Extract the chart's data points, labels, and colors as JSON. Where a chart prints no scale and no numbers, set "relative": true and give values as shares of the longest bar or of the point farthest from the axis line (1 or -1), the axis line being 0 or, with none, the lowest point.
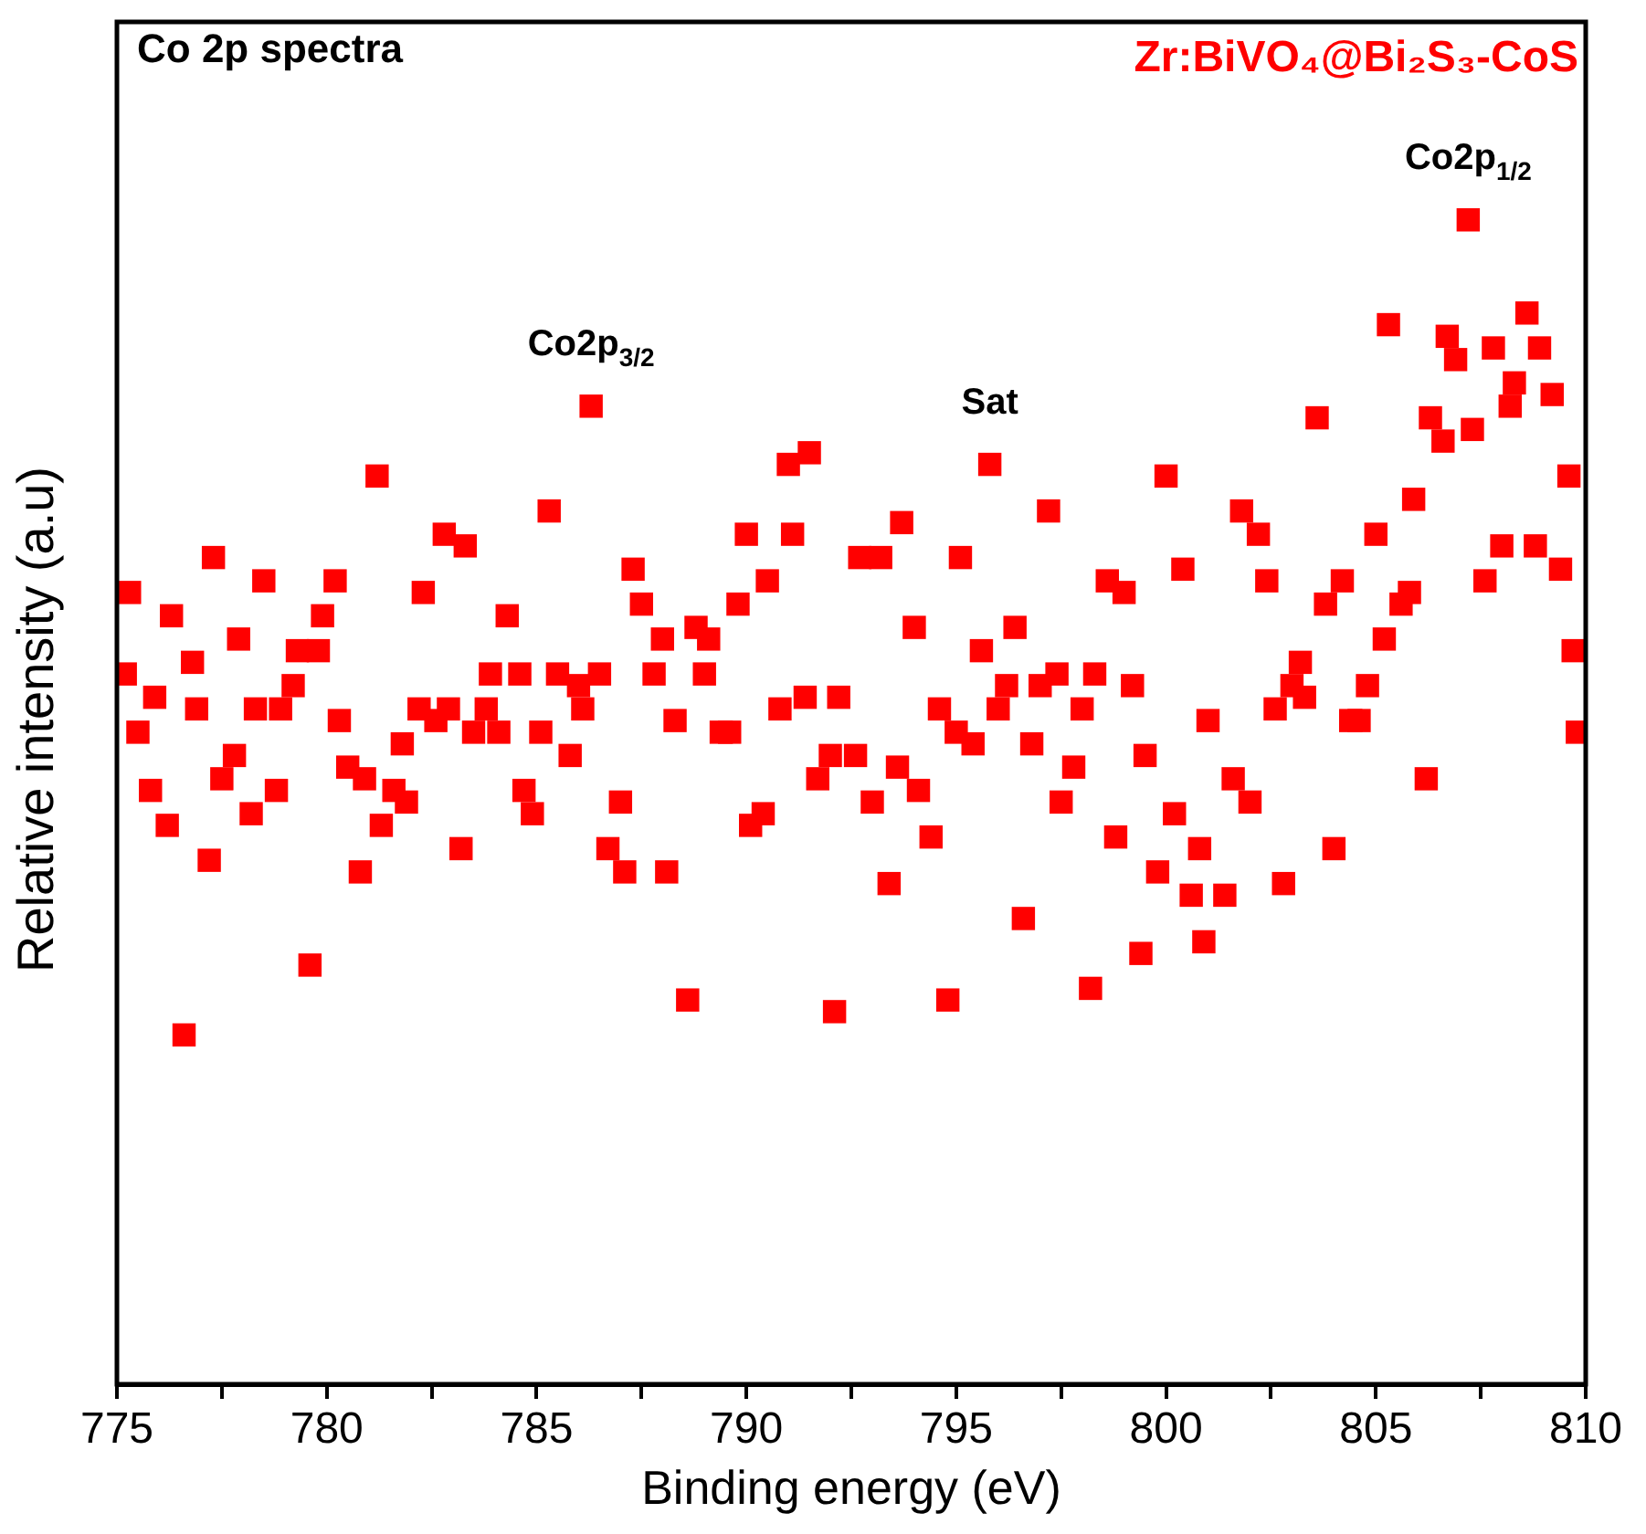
{
  "chart_data": {
    "type": "scatter",
    "title": "Co 2p spectra",
    "xlabel": "Binding energy (eV)",
    "ylabel": "Relative intensity (a.u)",
    "relative": true,
    "marker": "square",
    "legend": "top right",
    "xlim": [
      775,
      810
    ],
    "xticks": [
      775,
      {
        "value": 777.5,
        "label": null
      },
      780,
      {
        "value": 782.5,
        "label": null
      },
      785,
      {
        "value": 787.5,
        "label": null
      },
      790,
      {
        "value": 792.5,
        "label": null
      },
      795,
      {
        "value": 797.5,
        "label": null
      },
      800,
      {
        "value": 802.5,
        "label": null
      },
      805,
      {
        "value": 807.5,
        "label": null
      },
      810
    ],
    "annotations": [
      {
        "text": "Co2p$_{3/2}$",
        "x": 786.3,
        "y": 0.84
      },
      {
        "text": "Sat",
        "x": 795.8,
        "y": 0.79
      },
      {
        "text": "Co2p$_{1/2}$",
        "x": 807.2,
        "y": 1
      }
    ],
    "series": [
      {
        "name": "Zr:BiVO₄@Bi₂S₃-CoS",
        "color": "#ff0000",
        "x": [
          775.2,
          775.3,
          775.5,
          775.8,
          775.9,
          776.2,
          776.3,
          776.6,
          776.8,
          776.9,
          777.2,
          777.3,
          777.5,
          777.8,
          777.9,
          778.2,
          778.3,
          778.5,
          778.8,
          778.9,
          779.2,
          779.3,
          779.6,
          779.8,
          779.9,
          780.2,
          780.3,
          780.5,
          780.8,
          780.9,
          781.2,
          781.3,
          781.6,
          781.8,
          781.9,
          782.2,
          782.3,
          782.6,
          782.8,
          782.9,
          783.2,
          783.3,
          783.5,
          783.8,
          783.9,
          784.1,
          784.3,
          784.6,
          784.7,
          784.9,
          785.1,
          785.3,
          785.5,
          785.8,
          786.0,
          786.1,
          786.3,
          786.5,
          786.7,
          787.0,
          787.1,
          787.3,
          787.5,
          787.8,
          788.0,
          788.1,
          788.3,
          788.6,
          788.8,
          789.0,
          789.1,
          789.4,
          789.6,
          789.8,
          790.0,
          790.1,
          790.4,
          790.5,
          790.8,
          791.0,
          791.1,
          791.4,
          791.5,
          791.7,
          792.0,
          792.1,
          792.2,
          792.6,
          792.7,
          793.0,
          793.2,
          793.4,
          793.6,
          793.7,
          794.0,
          794.1,
          794.4,
          794.6,
          794.8,
          795.0,
          795.1,
          795.4,
          795.6,
          795.8,
          796.0,
          796.2,
          796.4,
          796.6,
          796.8,
          797.0,
          797.2,
          797.4,
          797.5,
          797.8,
          798.0,
          798.2,
          798.3,
          798.6,
          798.8,
          799.0,
          799.2,
          799.4,
          799.5,
          799.8,
          800.0,
          800.2,
          800.4,
          800.6,
          800.8,
          800.9,
          801.0,
          801.4,
          801.6,
          801.8,
          802.0,
          802.2,
          802.4,
          802.6,
          802.8,
          803.0,
          803.2,
          803.3,
          803.6,
          803.8,
          804.0,
          804.2,
          804.4,
          804.6,
          804.8,
          805.0,
          805.2,
          805.3,
          805.6,
          805.8,
          805.9,
          806.2,
          806.3,
          806.6,
          806.7,
          806.9,
          807.2,
          807.3,
          807.6,
          807.8,
          808.0,
          808.2,
          808.3,
          808.6,
          808.8,
          808.9,
          809.2,
          809.4,
          809.6,
          809.7,
          809.8
        ],
        "values": [
          0.61,
          0.68,
          0.56,
          0.51,
          0.59,
          0.48,
          0.66,
          0.3,
          0.62,
          0.58,
          0.45,
          0.71,
          0.52,
          0.54,
          0.64,
          0.49,
          0.58,
          0.69,
          0.51,
          0.58,
          0.6,
          0.63,
          0.36,
          0.63,
          0.66,
          0.69,
          0.57,
          0.53,
          0.44,
          0.52,
          0.78,
          0.48,
          0.51,
          0.55,
          0.5,
          0.58,
          0.68,
          0.57,
          0.73,
          0.58,
          0.46,
          0.72,
          0.56,
          0.58,
          0.61,
          0.56,
          0.66,
          0.61,
          0.51,
          0.49,
          0.56,
          0.75,
          0.61,
          0.54,
          0.6,
          0.58,
          0.84,
          0.61,
          0.46,
          0.5,
          0.44,
          0.7,
          0.67,
          0.61,
          0.64,
          0.44,
          0.57,
          0.33,
          0.65,
          0.61,
          0.64,
          0.56,
          0.56,
          0.67,
          0.73,
          0.48,
          0.49,
          0.69,
          0.58,
          0.79,
          0.73,
          0.59,
          0.8,
          0.52,
          0.54,
          0.32,
          0.59,
          0.54,
          0.71,
          0.5,
          0.71,
          0.43,
          0.53,
          0.74,
          0.65,
          0.51,
          0.47,
          0.58,
          0.33,
          0.56,
          0.71,
          0.55,
          0.63,
          0.79,
          0.58,
          0.6,
          0.65,
          0.4,
          0.55,
          0.6,
          0.75,
          0.61,
          0.5,
          0.53,
          0.58,
          0.34,
          0.61,
          0.69,
          0.47,
          0.68,
          0.6,
          0.37,
          0.54,
          0.44,
          0.78,
          0.49,
          0.7,
          0.42,
          0.46,
          0.38,
          0.57,
          0.42,
          0.52,
          0.75,
          0.5,
          0.73,
          0.69,
          0.58,
          0.43,
          0.6,
          0.62,
          0.59,
          0.83,
          0.67,
          0.46,
          0.69,
          0.57,
          0.57,
          0.6,
          0.73,
          0.64,
          0.91,
          0.67,
          0.68,
          0.76,
          0.52,
          0.83,
          0.81,
          0.9,
          0.88,
          1,
          0.82,
          0.69,
          0.89,
          0.72,
          0.84,
          0.86,
          0.92,
          0.72,
          0.89,
          0.85,
          0.7,
          0.78,
          0.63,
          0.56
        ]
      }
    ]
  }
}
